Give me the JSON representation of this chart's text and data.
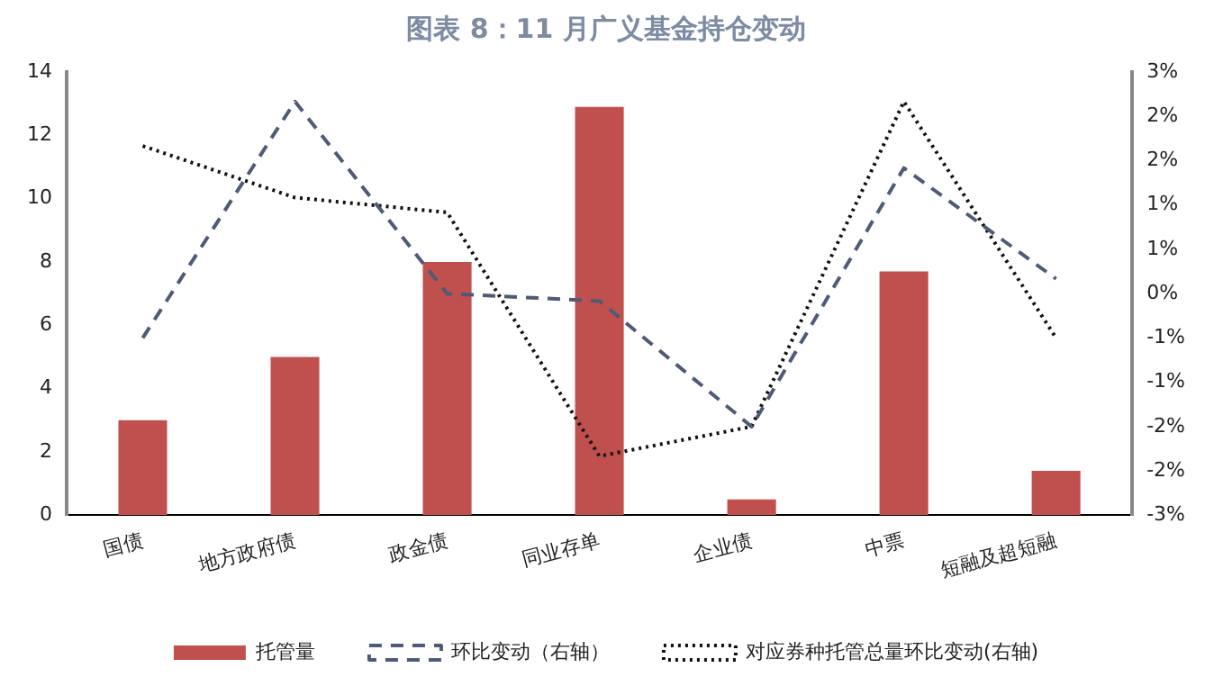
{
  "chart_data": {
    "type": "bar",
    "title": "图表 8：11 月广义基金持仓变动",
    "categories": [
      "国债",
      "地方政府债",
      "政金债",
      "同业存单",
      "企业债",
      "中票",
      "短融及超短融"
    ],
    "series": [
      {
        "name": "托管量",
        "color": "#c0504d",
        "values": [
          3,
          5,
          8,
          12.9,
          0.5,
          7.7,
          1.4
        ]
      },
      {
        "name": "环比变动（右轴）",
        "type": "line",
        "axis": "y2",
        "color": "#4f5a78",
        "line_style": "dashed",
        "values": [
          -0.6,
          2.6,
          0,
          -0.1,
          -1.8,
          1.7,
          0.2
        ]
      },
      {
        "name": "对应券种托管总量环比变动(右轴)",
        "type": "line",
        "axis": "y2",
        "color": "#111111",
        "line_style": "dotted",
        "values": [
          2,
          1.3,
          1.1,
          -2.2,
          -1.8,
          2.6,
          -0.6
        ]
      }
    ],
    "ylim": [
      0,
      14
    ],
    "yticks": [
      0,
      2,
      4,
      6,
      8,
      10,
      12,
      14
    ],
    "y2lim": [
      -3,
      3
    ],
    "y2ticks": [
      {
        "value": -3,
        "label": "-3%"
      },
      {
        "value": -2.4,
        "label": "-2%"
      },
      {
        "value": -1.8,
        "label": "-2%"
      },
      {
        "value": -1.2,
        "label": "-1%"
      },
      {
        "value": -0.6,
        "label": "-1%"
      },
      {
        "value": 0,
        "label": "0%"
      },
      {
        "value": 0.6,
        "label": "1%"
      },
      {
        "value": 1.2,
        "label": "1%"
      },
      {
        "value": 1.8,
        "label": "2%"
      },
      {
        "value": 2.4,
        "label": "2%"
      },
      {
        "value": 3,
        "label": "3%"
      }
    ],
    "grid": false,
    "legend": "bottom",
    "marker": "none"
  }
}
